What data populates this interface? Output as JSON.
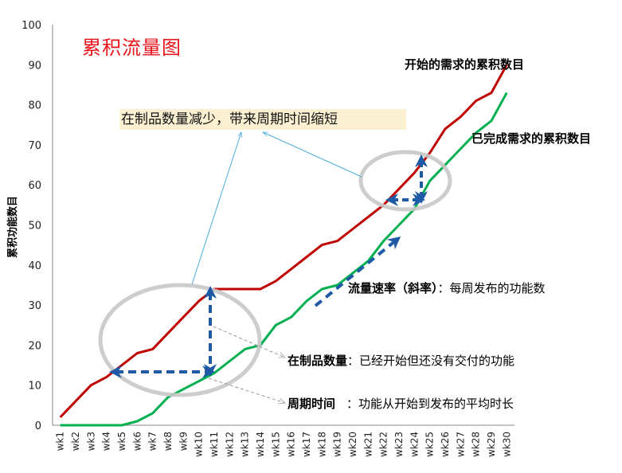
{
  "title": "累积流量图",
  "callout_top": "在制品数量减少，带来周期时间缩短",
  "series_labels": {
    "started": "开始的需求的累积数目",
    "done": "已完成需求的累积数目"
  },
  "annotations": {
    "throughput_bold": "流量速率（斜率）",
    "throughput_text": "：每周发布的功能数",
    "wip_bold": "在制品数量",
    "wip_text": "：已经开始但还没有交付的功能",
    "cycle_bold": "周期时间",
    "cycle_text": "：功能从开始到发布的平均时长"
  },
  "colors": {
    "started": "#c00000",
    "done": "#00b050",
    "arrow": "#1f5aa6",
    "ellipse": "#c8c8c8",
    "title": "#e8141b",
    "callout_bg": "#fcf0d2",
    "leader": "#4bacd8"
  },
  "chart_data": {
    "type": "line",
    "title": "累积流量图",
    "xlabel": "",
    "ylabel": "累积功能数目",
    "ylim": [
      0,
      100
    ],
    "yticks": [
      0,
      10,
      20,
      30,
      40,
      50,
      60,
      70,
      80,
      90,
      100
    ],
    "grid": false,
    "categories": [
      "wk1",
      "wk2",
      "wk3",
      "wk4",
      "wk5",
      "wk6",
      "wk7",
      "wk8",
      "wk9",
      "wk10",
      "wk11",
      "wk12",
      "wk13",
      "wk14",
      "wk15",
      "wk16",
      "wk17",
      "wk18",
      "wk19",
      "wk20",
      "wk21",
      "wk22",
      "wk23",
      "wk24",
      "wk25",
      "wk26",
      "wk27",
      "wk28",
      "wk29",
      "wk30"
    ],
    "series": [
      {
        "name": "开始的需求的累积数目",
        "color": "#c00000",
        "values": [
          2,
          6,
          10,
          12,
          15,
          18,
          19,
          23,
          27,
          31,
          34,
          34,
          34,
          34,
          36,
          39,
          42,
          45,
          46,
          49,
          52,
          55,
          59,
          63,
          68,
          74,
          77,
          81,
          83,
          90
        ]
      },
      {
        "name": "已完成需求的累积数目",
        "color": "#00b050",
        "values": [
          0,
          0,
          0,
          0,
          0,
          1,
          3,
          7,
          9,
          11,
          13,
          16,
          19,
          20,
          25,
          27,
          31,
          34,
          35,
          38,
          41,
          46,
          50,
          54,
          61,
          65,
          69,
          73,
          76,
          83
        ]
      }
    ],
    "annotations": [
      "在制品数量减少，带来周期时间缩短",
      "流量速率（斜率）：每周发布的功能数",
      "在制品数量：已经开始但还没有交付的功能",
      "周期时间：功能从开始到发布的平均时长"
    ],
    "legend_position": "inline labels at upper right"
  }
}
